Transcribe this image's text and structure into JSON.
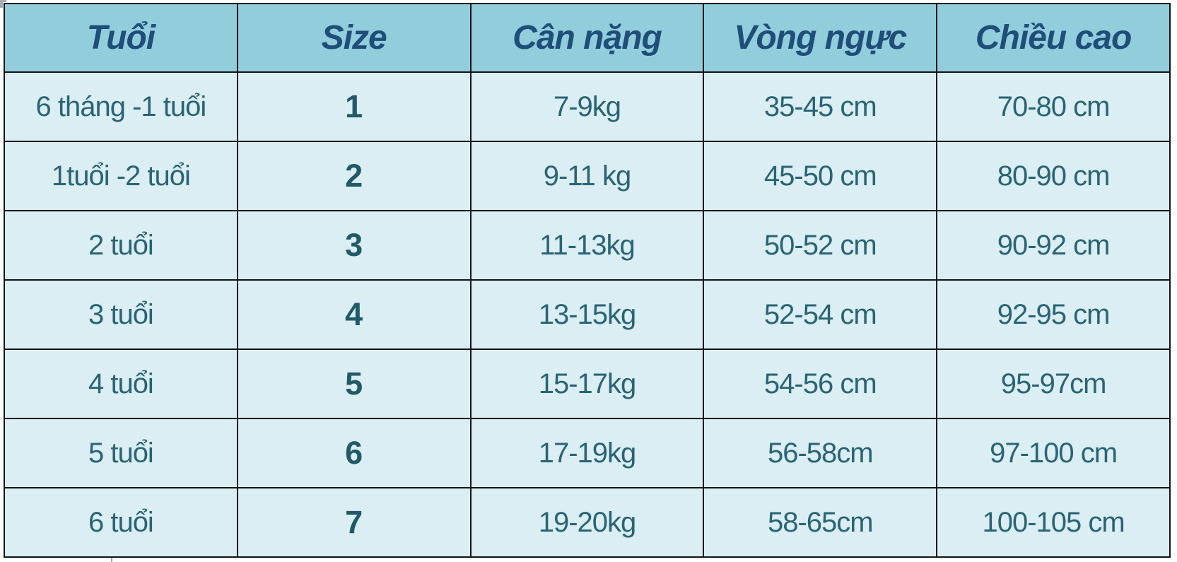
{
  "colors": {
    "header_bg": "#92cddc",
    "header_text": "#1f4e79",
    "row_bg": "#daeef3",
    "body_text": "#2a6475",
    "size_text": "#215967",
    "border": "#101417"
  },
  "table": {
    "headers": {
      "age": "Tuổi",
      "size": "Size",
      "weight": "Cân nặng",
      "chest": "Vòng ngực",
      "height": "Chiều cao"
    },
    "rows": [
      {
        "age": "6 tháng -1 tuổi",
        "size": "1",
        "weight": "7-9kg",
        "chest": "35-45 cm",
        "height": "70-80 cm"
      },
      {
        "age": "1tuổi -2 tuổi",
        "size": "2",
        "weight": "9-11 kg",
        "chest": "45-50 cm",
        "height": "80-90 cm"
      },
      {
        "age": "2 tuổi",
        "size": "3",
        "weight": "11-13kg",
        "chest": "50-52 cm",
        "height": "90-92 cm"
      },
      {
        "age": "3 tuổi",
        "size": "4",
        "weight": "13-15kg",
        "chest": "52-54 cm",
        "height": "92-95 cm"
      },
      {
        "age": "4 tuổi",
        "size": "5",
        "weight": "15-17kg",
        "chest": "54-56 cm",
        "height": "95-97cm"
      },
      {
        "age": "5 tuổi",
        "size": "6",
        "weight": "17-19kg",
        "chest": "56-58cm",
        "height": "97-100 cm"
      },
      {
        "age": "6 tuổi",
        "size": "7",
        "weight": "19-20kg",
        "chest": "58-65cm",
        "height": "100-105 cm"
      }
    ]
  },
  "chart_data": {
    "type": "table",
    "columns": [
      "Tuổi",
      "Size",
      "Cân nặng",
      "Vòng ngực",
      "Chiều cao"
    ],
    "rows": [
      [
        "6 tháng -1 tuổi",
        "1",
        "7-9kg",
        "35-45 cm",
        "70-80 cm"
      ],
      [
        "1tuổi -2 tuổi",
        "2",
        "9-11 kg",
        "45-50 cm",
        "80-90 cm"
      ],
      [
        "2 tuổi",
        "3",
        "11-13kg",
        "50-52 cm",
        "90-92 cm"
      ],
      [
        "3 tuổi",
        "4",
        "13-15kg",
        "52-54 cm",
        "92-95 cm"
      ],
      [
        "4 tuổi",
        "5",
        "15-17kg",
        "54-56 cm",
        "95-97cm"
      ],
      [
        "5 tuổi",
        "6",
        "17-19kg",
        "56-58cm",
        "97-100 cm"
      ],
      [
        "6 tuổi",
        "7",
        "19-20kg",
        "58-65cm",
        "100-105 cm"
      ]
    ]
  }
}
